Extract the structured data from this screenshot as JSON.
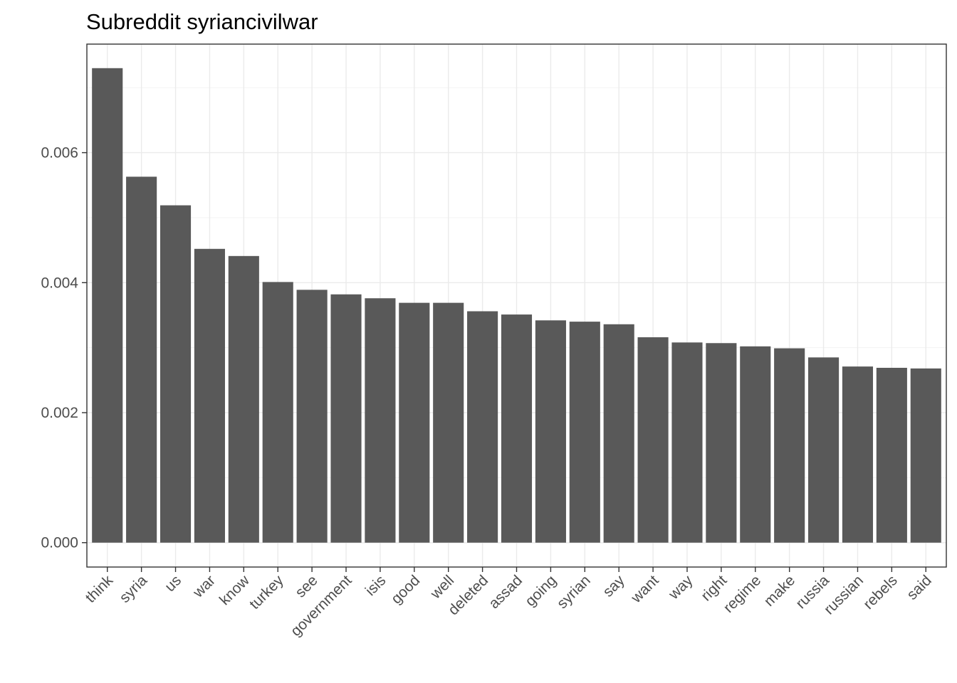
{
  "chart_data": {
    "type": "bar",
    "title": "Subreddit syriancivilwar",
    "xlabel": "",
    "ylabel": "",
    "categories": [
      "think",
      "syria",
      "us",
      "war",
      "know",
      "turkey",
      "see",
      "government",
      "isis",
      "good",
      "well",
      "deleted",
      "assad",
      "going",
      "syrian",
      "say",
      "want",
      "way",
      "right",
      "regime",
      "make",
      "russia",
      "russian",
      "rebels",
      "said"
    ],
    "values": [
      0.0073,
      0.00563,
      0.00519,
      0.00452,
      0.00441,
      0.00401,
      0.00389,
      0.00382,
      0.00376,
      0.00369,
      0.00369,
      0.00356,
      0.00351,
      0.00342,
      0.0034,
      0.00336,
      0.00316,
      0.00308,
      0.00307,
      0.00302,
      0.00299,
      0.00285,
      0.00271,
      0.00269,
      0.00268
    ],
    "ylim": [
      -0.000375,
      0.00767
    ],
    "yticks": [
      0.0,
      0.002,
      0.004,
      0.006
    ],
    "ytick_labels": [
      "0.000",
      "0.002",
      "0.004",
      "0.006"
    ],
    "grid": true,
    "bar_color": "#595959",
    "legend": "none"
  }
}
